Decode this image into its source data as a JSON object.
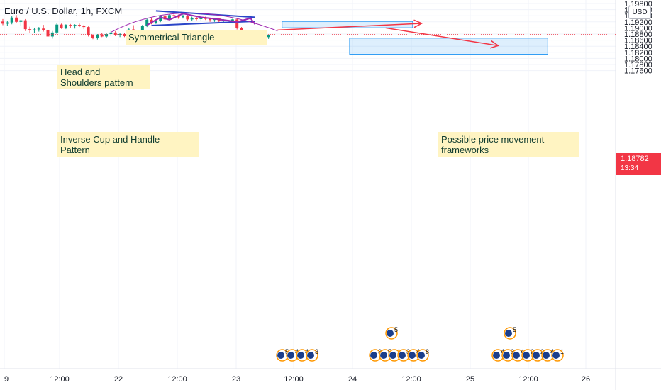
{
  "header": {
    "title": "Euro / U.S. Dollar, 1h, FXCM",
    "currency_badge": "USD"
  },
  "last_price": {
    "value": "1.18782",
    "countdown": "13:34"
  },
  "annotations": {
    "symmetrical_triangle": "Symmetrical Triangle",
    "head_shoulders": "Head and\nShoulders pattern",
    "cup_handle": "Inverse Cup and Handle\nPattern",
    "frameworks": "Possible price movement\nframeworks"
  },
  "chart_data": {
    "type": "candlestick",
    "title": "Euro / U.S. Dollar, 1h, FXCM",
    "y_axis": {
      "tick_labels": [
        "1.19800",
        "1.19600",
        "1.19400",
        "1.19200",
        "1.19000",
        "1.18800",
        "1.18600",
        "1.18400",
        "1.18200",
        "1.18000",
        "1.17800",
        "1.17600"
      ],
      "range": [
        1.1745,
        1.1985
      ]
    },
    "x_axis": {
      "tick_labels": [
        "9",
        "12:00",
        "22",
        "12:00",
        "23",
        "12:00",
        "24",
        "12:00",
        "25",
        "12:00",
        "26"
      ]
    },
    "last_price": 1.18782,
    "candles": [
      [
        1.1921,
        1.1929,
        1.1909,
        1.1914
      ],
      [
        1.1914,
        1.1924,
        1.1906,
        1.1918
      ],
      [
        1.1918,
        1.1938,
        1.1912,
        1.1934
      ],
      [
        1.1934,
        1.1942,
        1.1915,
        1.192
      ],
      [
        1.192,
        1.1927,
        1.1908,
        1.1925
      ],
      [
        1.1925,
        1.1929,
        1.189,
        1.1896
      ],
      [
        1.1896,
        1.1904,
        1.1884,
        1.1892
      ],
      [
        1.1892,
        1.1901,
        1.1884,
        1.1895
      ],
      [
        1.1895,
        1.1903,
        1.1888,
        1.1898
      ],
      [
        1.1898,
        1.191,
        1.1888,
        1.1894
      ],
      [
        1.1894,
        1.1899,
        1.1868,
        1.1872
      ],
      [
        1.1872,
        1.189,
        1.1865,
        1.1885
      ],
      [
        1.1885,
        1.1916,
        1.188,
        1.1911
      ],
      [
        1.1911,
        1.1914,
        1.1897,
        1.19
      ],
      [
        1.19,
        1.1912,
        1.1896,
        1.191
      ],
      [
        1.191,
        1.1913,
        1.19,
        1.1908
      ],
      [
        1.1908,
        1.1912,
        1.1898,
        1.191
      ],
      [
        1.191,
        1.1914,
        1.1903,
        1.1907
      ],
      [
        1.1907,
        1.191,
        1.1896,
        1.1903
      ],
      [
        1.1903,
        1.1905,
        1.1872,
        1.1876
      ],
      [
        1.1876,
        1.1879,
        1.1863,
        1.1866
      ],
      [
        1.1866,
        1.188,
        1.1862,
        1.1878
      ],
      [
        1.1878,
        1.1884,
        1.187,
        1.1872
      ],
      [
        1.1872,
        1.1882,
        1.1867,
        1.188
      ],
      [
        1.188,
        1.1891,
        1.1873,
        1.1885
      ],
      [
        1.1885,
        1.189,
        1.1873,
        1.1876
      ],
      [
        1.1876,
        1.1883,
        1.187,
        1.188
      ],
      [
        1.188,
        1.1884,
        1.187,
        1.1873
      ],
      [
        1.1873,
        1.1901,
        1.187,
        1.1895
      ],
      [
        1.1895,
        1.1909,
        1.1875,
        1.1881
      ],
      [
        1.1881,
        1.1896,
        1.1874,
        1.1893
      ],
      [
        1.1893,
        1.191,
        1.1888,
        1.1906
      ],
      [
        1.1906,
        1.193,
        1.1903,
        1.1927
      ],
      [
        1.1927,
        1.1932,
        1.1912,
        1.1916
      ],
      [
        1.1916,
        1.1928,
        1.1913,
        1.1924
      ],
      [
        1.1924,
        1.1942,
        1.1919,
        1.1938
      ],
      [
        1.1938,
        1.1946,
        1.1925,
        1.1928
      ],
      [
        1.1928,
        1.1945,
        1.1926,
        1.1942
      ],
      [
        1.1942,
        1.1949,
        1.1934,
        1.194
      ],
      [
        1.194,
        1.1944,
        1.193,
        1.1935
      ],
      [
        1.1935,
        1.1944,
        1.1931,
        1.1938
      ],
      [
        1.1938,
        1.1942,
        1.1922,
        1.1928
      ],
      [
        1.1928,
        1.1937,
        1.1924,
        1.1933
      ],
      [
        1.1933,
        1.1936,
        1.1925,
        1.1929
      ],
      [
        1.1929,
        1.1935,
        1.1924,
        1.1932
      ],
      [
        1.1932,
        1.1937,
        1.1926,
        1.193
      ],
      [
        1.193,
        1.1933,
        1.192,
        1.1926
      ],
      [
        1.1926,
        1.1933,
        1.192,
        1.1931
      ],
      [
        1.1931,
        1.1933,
        1.1915,
        1.1922
      ],
      [
        1.1922,
        1.1929,
        1.1918,
        1.1926
      ],
      [
        1.1926,
        1.1929,
        1.1916,
        1.1922
      ],
      [
        1.1922,
        1.193,
        1.1919,
        1.1928
      ],
      [
        1.1928,
        1.193,
        1.1895,
        1.19
      ],
      [
        1.19,
        1.1903,
        1.188,
        1.1884
      ],
      [
        1.1884,
        1.189,
        1.1875,
        1.1882
      ],
      [
        1.1882,
        1.1886,
        1.1872,
        1.1876
      ],
      [
        1.1876,
        1.1881,
        1.1868,
        1.1871
      ],
      [
        1.1871,
        1.1879,
        1.1867,
        1.1877
      ],
      [
        1.1877,
        1.188,
        1.1866,
        1.187
      ],
      [
        1.187,
        1.1877,
        1.1864,
        1.1878
      ]
    ],
    "zones": [
      {
        "from_index": 62,
        "to_index": 91,
        "high": 1.19215,
        "low": 1.19005
      },
      {
        "from_index": 77,
        "to_index": 121,
        "high": 1.18665,
        "low": 1.18135
      }
    ],
    "events": [
      {
        "position": "1.5 days after 23",
        "labels": [
          "5",
          "4",
          "4",
          "3"
        ]
      },
      {
        "position": "24, 12:00",
        "labels": [
          "3",
          "5",
          "1",
          "3",
          "4",
          "8",
          "5"
        ]
      },
      {
        "position": "25, 12:00",
        "labels": [
          "4",
          "3",
          "4",
          "2",
          "2",
          "4",
          "1",
          "5"
        ]
      }
    ]
  }
}
